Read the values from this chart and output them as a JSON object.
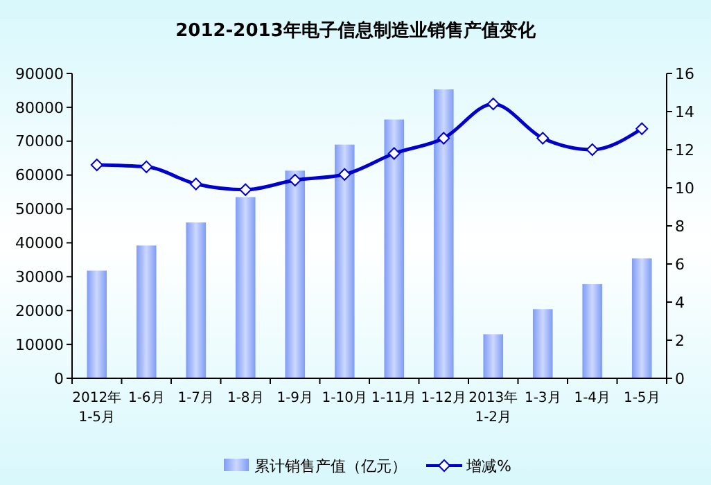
{
  "chart_data": {
    "type": "bar",
    "title": "2012-2013年电子信息制造业销售产值变化",
    "categories": [
      "2012年\n1-5月",
      "1-6月",
      "1-7月",
      "1-8月",
      "1-9月",
      "1-10月",
      "1-11月",
      "1-12月",
      "2013年\n1-2月",
      "1-3月",
      "1-4月",
      "1-5月"
    ],
    "series": [
      {
        "name": "累计销售产值（亿元）",
        "color": "#7f9cf5",
        "values": [
          31800,
          39200,
          46000,
          53500,
          61300,
          69000,
          76400,
          85300,
          13000,
          20400,
          27800,
          35400
        ]
      },
      {
        "name": "增减%",
        "type": "line",
        "axis": "y2",
        "color": "#0000cc",
        "marker": "diamond",
        "values": [
          11.2,
          11.1,
          10.2,
          9.9,
          10.4,
          10.7,
          11.8,
          12.6,
          14.4,
          12.6,
          12.0,
          13.1
        ]
      }
    ],
    "ylim": [
      0,
      90000
    ],
    "yticks": [
      0,
      10000,
      20000,
      30000,
      40000,
      50000,
      60000,
      70000,
      80000,
      90000
    ],
    "y2lim": [
      0,
      16
    ],
    "y2ticks": [
      0,
      2,
      4,
      6,
      8,
      10,
      12,
      14,
      16
    ],
    "legend": "bottom",
    "grid": false
  }
}
